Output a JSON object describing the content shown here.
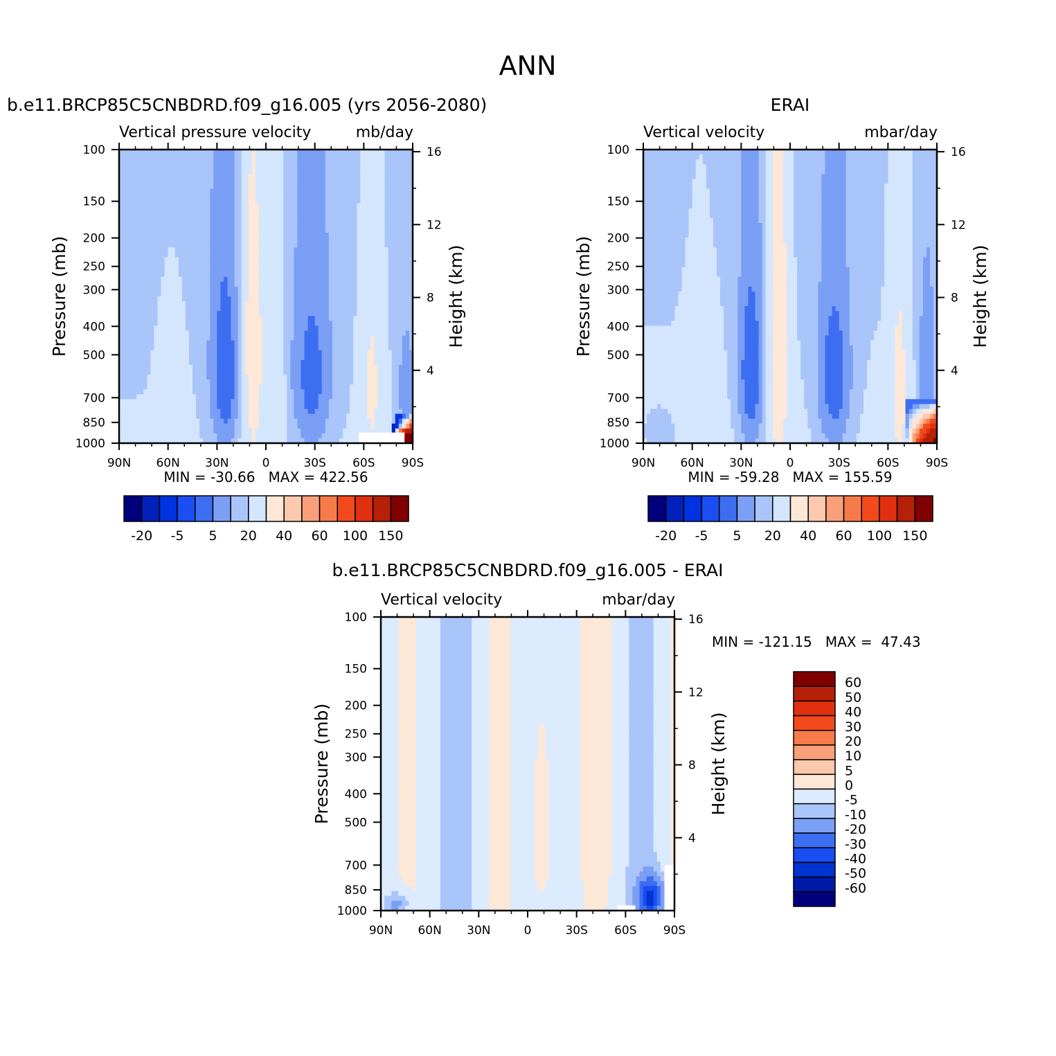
{
  "page_title": "ANN",
  "palette": {
    "panel_scale": [
      "#00007f",
      "#0022bb",
      "#0033e0",
      "#1a4df2",
      "#3d6ef2",
      "#7a9ff5",
      "#a9c5fa",
      "#d4e6fd",
      "#fde7d6",
      "#fcc8ae",
      "#f9a07a",
      "#f77a4a",
      "#f24a1c",
      "#e03010",
      "#b52008",
      "#800000"
    ],
    "diff_scale": [
      "#00007f",
      "#001aa8",
      "#0033d0",
      "#1a4df2",
      "#3d6ef2",
      "#7a9ff5",
      "#a9c5fa",
      "#dcebfd",
      "#fde7d6",
      "#fcc8ae",
      "#f9a07a",
      "#f77a4a",
      "#f24a1c",
      "#e03010",
      "#b52008",
      "#800000"
    ]
  },
  "chart_data": [
    {
      "type": "heatmap",
      "id": "model",
      "title": "b.e11.BRCP85C5CNBDRD.f09_g16.005 (yrs 2056-2080)",
      "left_string": "Vertical pressure velocity",
      "right_string": "mb/day",
      "xlabel": "",
      "ylabel": "Pressure (mb)",
      "ylabel_right": "Height (km)",
      "x_ticks": [
        "90N",
        "60N",
        "30N",
        "0",
        "30S",
        "60S",
        "90S"
      ],
      "y_ticks": [
        100,
        150,
        200,
        250,
        300,
        400,
        500,
        700,
        850,
        1000
      ],
      "height_ticks": [
        4,
        8,
        12,
        16
      ],
      "min_max": "MIN = -30.66   MAX = 422.56",
      "colorbar_labels": [
        "-20",
        "-5",
        "5",
        "20",
        "40",
        "60",
        "100",
        "150"
      ],
      "levels": [
        -30,
        -20,
        -10,
        -5,
        0,
        5,
        10,
        20,
        30,
        40,
        50,
        60,
        80,
        100,
        150
      ],
      "field": "model"
    },
    {
      "type": "heatmap",
      "id": "obs",
      "title": "ERAI",
      "left_string": "Vertical velocity",
      "right_string": "mbar/day",
      "xlabel": "",
      "ylabel": "Pressure (mb)",
      "ylabel_right": "Height (km)",
      "x_ticks": [
        "90N",
        "60N",
        "30N",
        "0",
        "30S",
        "60S",
        "90S"
      ],
      "y_ticks": [
        100,
        150,
        200,
        250,
        300,
        400,
        500,
        700,
        850,
        1000
      ],
      "height_ticks": [
        4,
        8,
        12,
        16
      ],
      "min_max": "MIN = -59.28   MAX = 155.59",
      "colorbar_labels": [
        "-20",
        "-5",
        "5",
        "20",
        "40",
        "60",
        "100",
        "150"
      ],
      "levels": [
        -30,
        -20,
        -10,
        -5,
        0,
        5,
        10,
        20,
        30,
        40,
        50,
        60,
        80,
        100,
        150
      ],
      "field": "obs"
    },
    {
      "type": "heatmap",
      "id": "diff",
      "title": "b.e11.BRCP85C5CNBDRD.f09_g16.005 - ERAI",
      "left_string": "Vertical velocity",
      "right_string": "mbar/day",
      "xlabel": "",
      "ylabel": "Pressure (mb)",
      "ylabel_right": "Height (km)",
      "x_ticks": [
        "90N",
        "60N",
        "30N",
        "0",
        "30S",
        "60S",
        "90S"
      ],
      "y_ticks": [
        100,
        150,
        200,
        250,
        300,
        400,
        500,
        700,
        850,
        1000
      ],
      "height_ticks": [
        4,
        8,
        12,
        16
      ],
      "min_max": "MIN = -121.15   MAX =  47.43",
      "colorbar_labels": [
        "60",
        "50",
        "40",
        "30",
        "20",
        "10",
        "5",
        "0",
        "-5",
        "-10",
        "-20",
        "-30",
        "-40",
        "-50",
        "-60"
      ],
      "levels": [
        -60,
        -50,
        -40,
        -30,
        -20,
        -10,
        -5,
        0,
        5,
        10,
        20,
        30,
        40,
        50,
        60
      ],
      "field": "diff"
    }
  ]
}
